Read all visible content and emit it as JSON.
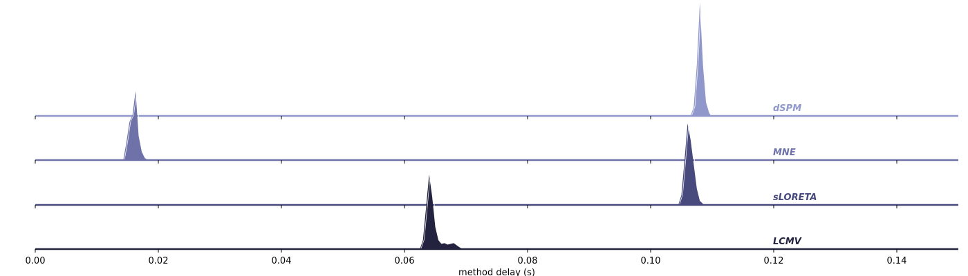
{
  "chart_data": {
    "type": "area",
    "title": "",
    "xlabel": "method delay (s)",
    "ylabel": "",
    "xlim": [
      0.0,
      0.15
    ],
    "xticks": [
      0.0,
      0.02,
      0.04,
      0.06,
      0.08,
      0.1,
      0.12,
      0.14
    ],
    "xtick_labels": [
      "0.00",
      "0.02",
      "0.04",
      "0.06",
      "0.08",
      "0.10",
      "0.12",
      "0.14"
    ],
    "grid": false,
    "legend": "none",
    "series": [
      {
        "name": "dSPM",
        "color": "#9098cb",
        "x": [
          0.1065,
          0.107,
          0.1075,
          0.108,
          0.1085,
          0.109,
          0.1095,
          0.1098
        ],
        "y": [
          0.0,
          0.08,
          0.45,
          1.0,
          0.45,
          0.12,
          0.03,
          0.0
        ]
      },
      {
        "name": "MNE",
        "color": "#6e72a8",
        "x": [
          0.0143,
          0.0148,
          0.0153,
          0.0158,
          0.0163,
          0.0168,
          0.0173,
          0.0178,
          0.0183
        ],
        "y": [
          0.0,
          0.25,
          0.55,
          0.65,
          1.0,
          0.35,
          0.12,
          0.03,
          0.0
        ]
      },
      {
        "name": "sLORETA",
        "color": "#484a7e",
        "x": [
          0.1045,
          0.105,
          0.1055,
          0.106,
          0.1065,
          0.107,
          0.1075,
          0.108,
          0.1087
        ],
        "y": [
          0.0,
          0.12,
          0.55,
          1.0,
          0.8,
          0.5,
          0.2,
          0.05,
          0.0
        ]
      },
      {
        "name": "LCMV",
        "color": "#232340",
        "x": [
          0.0625,
          0.063,
          0.0635,
          0.064,
          0.0645,
          0.065,
          0.0655,
          0.066,
          0.0665,
          0.067,
          0.0675,
          0.068,
          0.0685,
          0.069,
          0.0695
        ],
        "y": [
          0.0,
          0.12,
          0.55,
          1.0,
          0.7,
          0.3,
          0.12,
          0.07,
          0.08,
          0.06,
          0.07,
          0.08,
          0.05,
          0.02,
          0.0
        ]
      }
    ]
  }
}
